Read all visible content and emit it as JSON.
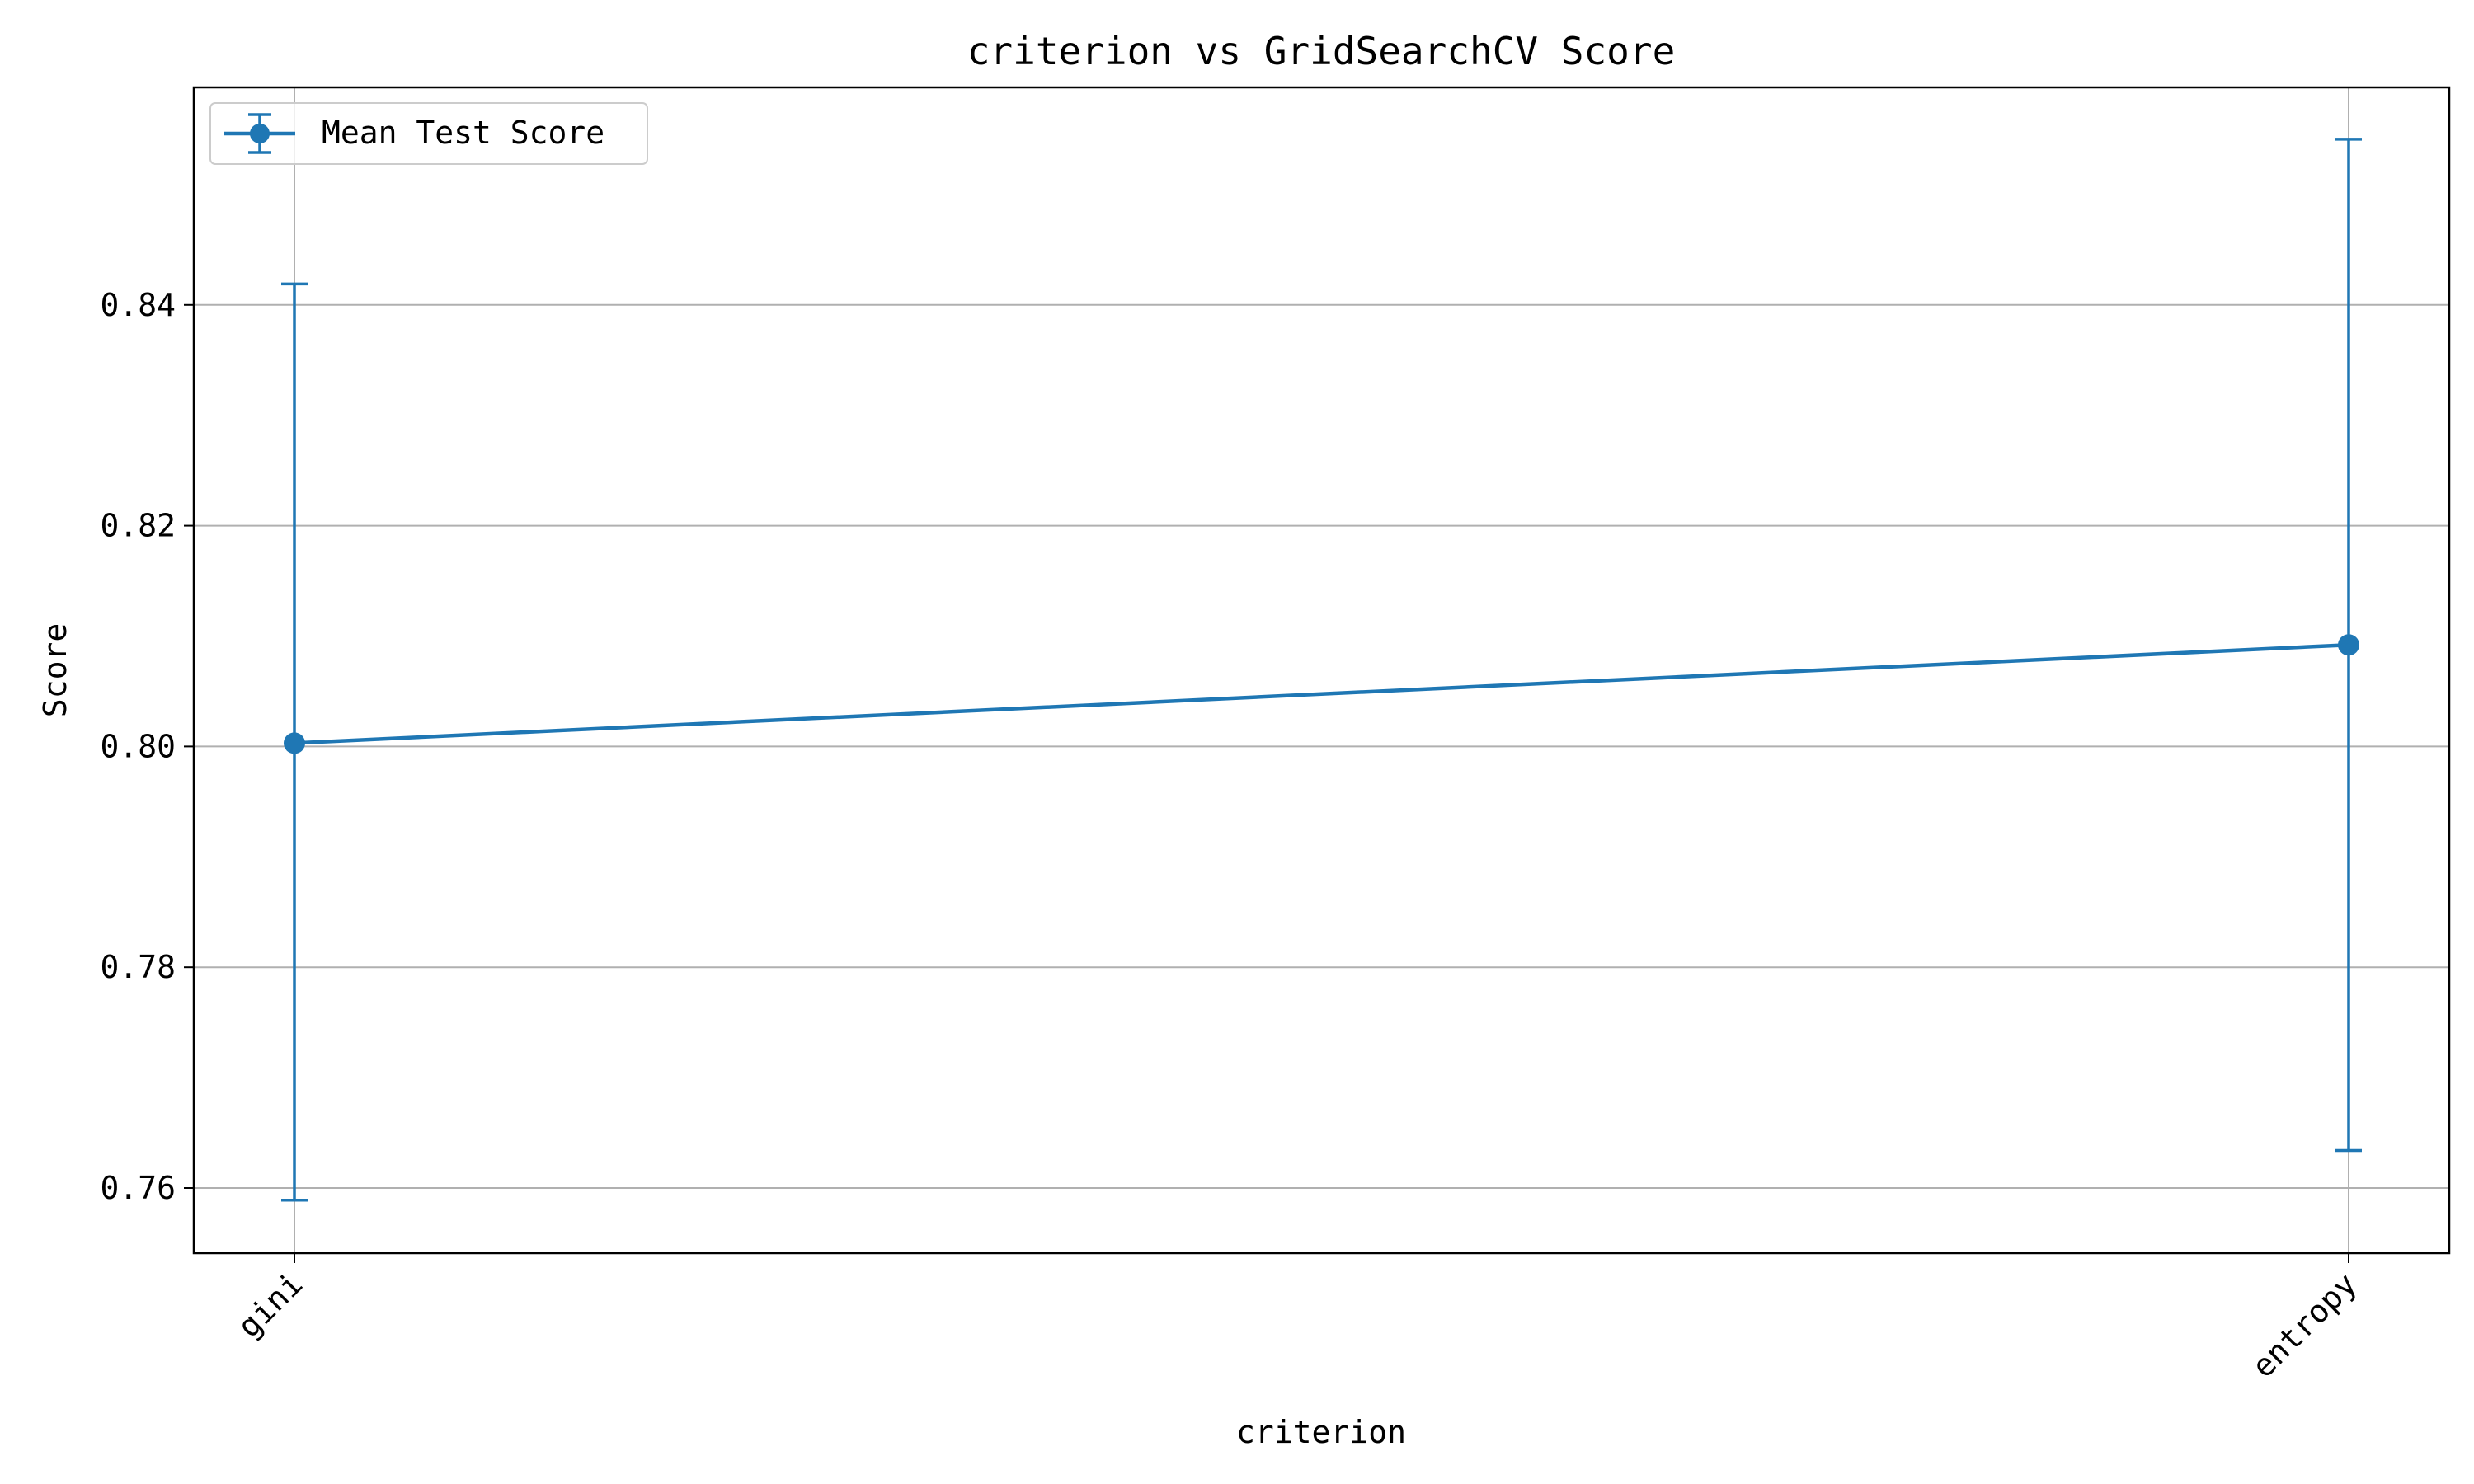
{
  "chart_data": {
    "type": "line",
    "title": "criterion vs GridSearchCV Score",
    "xlabel": "criterion",
    "ylabel": "Score",
    "categories": [
      "gini",
      "entropy"
    ],
    "series": [
      {
        "name": "Mean Test Score",
        "values": [
          0.8003,
          0.8092
        ],
        "error_lower": [
          0.7589,
          0.7634
        ],
        "error_upper": [
          0.8419,
          0.855
        ],
        "color": "#1f77b4"
      }
    ],
    "ylim": [
      0.7541,
      0.8597
    ],
    "yticks": [
      0.76,
      0.78,
      0.8,
      0.82,
      0.84
    ],
    "ytick_labels": [
      "0.76",
      "0.78",
      "0.80",
      "0.82",
      "0.84"
    ],
    "grid": true,
    "legend_position": "top-left",
    "colors": {
      "series": "#1f77b4",
      "grid": "#b0b0b0",
      "axes": "#000000"
    }
  }
}
